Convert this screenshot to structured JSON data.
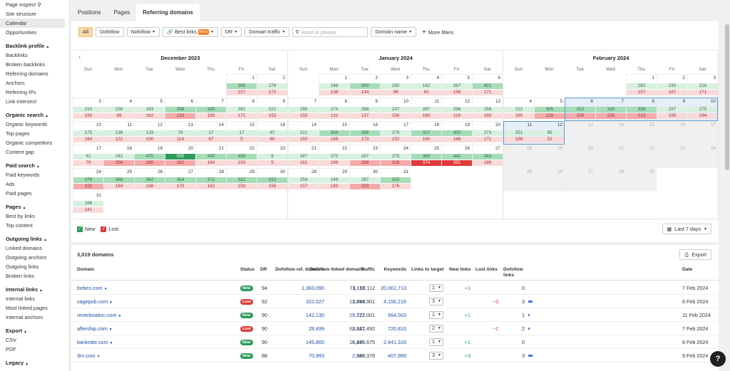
{
  "sidebar": {
    "top_items": [
      {
        "label": "Page inspect",
        "icon": "search-icon"
      },
      {
        "label": "Site structure"
      },
      {
        "label": "Calendar",
        "active": true
      },
      {
        "label": "Opportunities"
      }
    ],
    "sections": [
      {
        "title": "Backlink profile",
        "items": [
          "Backlinks",
          "Broken backlinks",
          "Referring domains",
          "Anchors",
          "Referring IPs",
          "Link intersect"
        ]
      },
      {
        "title": "Organic search",
        "items": [
          "Organic keywords",
          "Top pages",
          "Organic competitors",
          "Content gap"
        ]
      },
      {
        "title": "Paid search",
        "items": [
          "Paid keywords",
          "Ads",
          "Paid pages"
        ]
      },
      {
        "title": "Pages",
        "items": [
          "Best by links",
          "Top content"
        ]
      },
      {
        "title": "Outgoing links",
        "items": [
          "Linked domains",
          "Outgoing anchors",
          "Outgoing links",
          "Broken links"
        ]
      },
      {
        "title": "Internal links",
        "items": [
          "Internal links",
          "Most linked pages",
          "Internal anchors"
        ]
      },
      {
        "title": "Export",
        "items": [
          "CSV",
          "PDF"
        ]
      },
      {
        "title": "Legacy",
        "items": []
      }
    ]
  },
  "tabs": [
    {
      "label": "Positions"
    },
    {
      "label": "Pages"
    },
    {
      "label": "Referring domains",
      "active": true
    }
  ],
  "filters": {
    "all": "All",
    "dofollow": "Dofollow",
    "nofollow": "Nofollow",
    "best_links": "Best links",
    "new_badge": "New",
    "dr": "DR",
    "domain_traffic": "Domain traffic",
    "search_placeholder": "Word or phrase",
    "domain_name": "Domain name",
    "more_filters": "More filters"
  },
  "calendar": {
    "weekdays": [
      "Sun",
      "Mon",
      "Tue",
      "Wed",
      "Thu",
      "Fri",
      "Sat"
    ],
    "months": [
      {
        "title": "December 2023",
        "start_weekday": 5,
        "days": [
          {
            "d": 1,
            "n": 365,
            "l": 157
          },
          {
            "d": 2,
            "n": 278,
            "l": 172
          },
          {
            "d": 3,
            "n": 210,
            "l": 150
          },
          {
            "d": 4,
            "n": 159,
            "l": 89
          },
          {
            "d": 5,
            "n": 243,
            "l": 162
          },
          {
            "d": 6,
            "n": 398,
            "l": 233
          },
          {
            "d": 7,
            "n": 330,
            "l": 180
          },
          {
            "d": 8,
            "n": 281,
            "l": 171
          },
          {
            "d": 9,
            "n": 222,
            "l": 153
          },
          {
            "d": 10,
            "n": 175,
            "l": 164
          },
          {
            "d": 11,
            "n": 139,
            "l": 122
          },
          {
            "d": 12,
            "n": 133,
            "l": 100
          },
          {
            "d": 13,
            "n": 79,
            "l": 114
          },
          {
            "d": 14,
            "n": 17,
            "l": 67
          },
          {
            "d": 15,
            "n": 17,
            "l": 5
          },
          {
            "d": 16,
            "n": 67,
            "l": 60
          },
          {
            "d": 17,
            "n": 42,
            "l": 79
          },
          {
            "d": 18,
            "n": 242,
            "l": 266
          },
          {
            "d": 19,
            "n": 475,
            "l": 285
          },
          {
            "d": 20,
            "n": 595,
            "l": 282
          },
          {
            "d": 21,
            "n": 400,
            "l": 164
          },
          {
            "d": 22,
            "n": 436,
            "l": 193
          },
          {
            "d": 23,
            "n": 8,
            "l": 5
          },
          {
            "d": 24,
            "n": 378,
            "l": 232
          },
          {
            "d": 25,
            "n": 388,
            "l": 184
          },
          {
            "d": 26,
            "n": 362,
            "l": 168
          },
          {
            "d": 27,
            "n": 354,
            "l": 170
          },
          {
            "d": 28,
            "n": 372,
            "l": 182
          },
          {
            "d": 29,
            "n": 322,
            "l": 150
          },
          {
            "d": 30,
            "n": 313,
            "l": 156
          },
          {
            "d": 31,
            "n": 288,
            "l": 141
          }
        ]
      },
      {
        "title": "January 2024",
        "start_weekday": 1,
        "days": [
          {
            "d": 1,
            "n": 248,
            "l": 138
          },
          {
            "d": 2,
            "n": 300,
            "l": 134
          },
          {
            "d": 3,
            "n": 290,
            "l": 98
          },
          {
            "d": 4,
            "n": 162,
            "l": 82
          },
          {
            "d": 5,
            "n": 267,
            "l": 156
          },
          {
            "d": 6,
            "n": 421,
            "l": 171
          },
          {
            "d": 7,
            "n": 290,
            "l": 155
          },
          {
            "d": 8,
            "n": 274,
            "l": 132
          },
          {
            "d": 9,
            "n": 268,
            "l": 137
          },
          {
            "d": 10,
            "n": 237,
            "l": 156
          },
          {
            "d": 11,
            "n": 287,
            "l": 160
          },
          {
            "d": 12,
            "n": 296,
            "l": 116
          },
          {
            "d": 13,
            "n": 258,
            "l": 165
          },
          {
            "d": 14,
            "n": 221,
            "l": 150
          },
          {
            "d": 15,
            "n": 304,
            "l": 168
          },
          {
            "d": 16,
            "n": 356,
            "l": 173
          },
          {
            "d": 17,
            "n": 279,
            "l": 152
          },
          {
            "d": 18,
            "n": 327,
            "l": 190
          },
          {
            "d": 19,
            "n": 302,
            "l": 148
          },
          {
            "d": 20,
            "n": 273,
            "l": 171
          },
          {
            "d": 21,
            "n": 287,
            "l": 161
          },
          {
            "d": 22,
            "n": 270,
            "l": 199
          },
          {
            "d": 23,
            "n": 267,
            "l": 288
          },
          {
            "d": 24,
            "n": 275,
            "l": 329
          },
          {
            "d": 25,
            "n": 360,
            "l": 374
          },
          {
            "d": 26,
            "n": 442,
            "l": 391
          },
          {
            "d": 27,
            "n": 343,
            "l": 188
          },
          {
            "d": 28,
            "n": 259,
            "l": 157
          },
          {
            "d": 29,
            "n": 249,
            "l": 183
          },
          {
            "d": 30,
            "n": 287,
            "l": 223
          },
          {
            "d": 31,
            "n": 315,
            "l": 176
          }
        ]
      },
      {
        "title": "February 2024",
        "start_weekday": 4,
        "days": [
          {
            "d": 1,
            "n": 282,
            "l": 157
          },
          {
            "d": 2,
            "n": 230,
            "l": 167
          },
          {
            "d": 3,
            "n": 216,
            "l": 171
          },
          {
            "d": 4,
            "n": 212,
            "l": 185
          },
          {
            "d": 5,
            "n": 305,
            "l": 226
          },
          {
            "d": 6,
            "n": 312,
            "l": 200
          },
          {
            "d": 7,
            "n": 330,
            "l": 225
          },
          {
            "d": 8,
            "n": 338,
            "l": 213
          },
          {
            "d": 9,
            "n": 297,
            "l": 195
          },
          {
            "d": 10,
            "n": 275,
            "l": 194
          },
          {
            "d": 11,
            "n": 251,
            "l": 186
          },
          {
            "d": 12,
            "n": 85,
            "l": 52
          },
          {
            "d": 13
          },
          {
            "d": 14
          },
          {
            "d": 15
          },
          {
            "d": 16
          },
          {
            "d": 17
          },
          {
            "d": 18
          },
          {
            "d": 19
          },
          {
            "d": 20
          },
          {
            "d": 21
          },
          {
            "d": 22
          },
          {
            "d": 23
          },
          {
            "d": 24
          },
          {
            "d": 25
          },
          {
            "d": 26
          },
          {
            "d": 27
          },
          {
            "d": 28
          },
          {
            "d": 29
          }
        ]
      }
    ],
    "legend_new": "New",
    "legend_lost": "Lost",
    "period": "Last 7 days"
  },
  "table": {
    "count": "3,019 domains",
    "export": "Export",
    "headers": {
      "domain": "Domain",
      "status": "Status",
      "dr": "DR",
      "dofollow_ref": "Dofollow ref. domains",
      "dofollow_linked": "Dofollow linked domains",
      "traffic": "Traffic",
      "keywords": "Keywords",
      "links_to_target": "Links to target",
      "new_links": "New links",
      "lost_links": "Lost links",
      "dofollow_links": "Dofollow links",
      "date": "Date"
    },
    "rows": [
      {
        "domain": "forbes.com",
        "status": "New",
        "dr": "94",
        "ref": "1,363,090",
        "linked": "3,112",
        "traffic": "71,159,112",
        "keywords": "20,061,713",
        "ltt": "1",
        "new": "+1",
        "lost": "",
        "dfl": "0",
        "bar": 0,
        "date": "7 Feb 2024"
      },
      {
        "domain": "sagepub.com",
        "status": "Lost",
        "dr": "92",
        "ref": "322,027",
        "linked": "13,743",
        "traffic": "1,894,901",
        "keywords": "4,156,216",
        "ltt": "3",
        "new": "",
        "lost": "−3",
        "dfl": "3",
        "bar": 3,
        "date": "6 Feb 2024"
      },
      {
        "domain": "reverbnation.com",
        "status": "New",
        "dr": "90",
        "ref": "142,130",
        "linked": "29,172",
        "traffic": "727,001",
        "keywords": "564,503",
        "ltt": "1",
        "new": "+1",
        "lost": "",
        "dfl": "1",
        "bar": 1,
        "date": "11 Feb 2024"
      },
      {
        "domain": "aflership.com",
        "status": "Lost",
        "dr": "90",
        "ref": "28,499",
        "linked": "62,327",
        "traffic": "3,841,492",
        "keywords": "720,810",
        "ltt": "2",
        "new": "",
        "lost": "−2",
        "dfl": "2",
        "bar": 1,
        "date": "7 Feb 2024"
      },
      {
        "domain": "bankrate.com",
        "status": "New",
        "dr": "90",
        "ref": "145,800",
        "linked": "6,156",
        "traffic": "16,445,675",
        "keywords": "2,441,316",
        "ltt": "1",
        "new": "+1",
        "lost": "",
        "dfl": "0",
        "bar": 0,
        "date": "6 Feb 2024"
      },
      {
        "domain": "3m.com",
        "status": "New",
        "dr": "88",
        "ref": "70,993",
        "linked": "2,380",
        "traffic": "949,378",
        "keywords": "407,989",
        "ltt": "3",
        "new": "+3",
        "lost": "",
        "dfl": "3",
        "bar": 3,
        "date": "9 Feb 2024"
      }
    ]
  },
  "colors": {
    "new_light": "#d9f0e1",
    "new_mid": "#a6dcb8",
    "new_strong": "#2e9a59",
    "lost_light": "#f9dada",
    "lost_mid": "#f3aaaa",
    "lost_strong": "#e03a3a",
    "select_border": "#5b9bd5"
  }
}
